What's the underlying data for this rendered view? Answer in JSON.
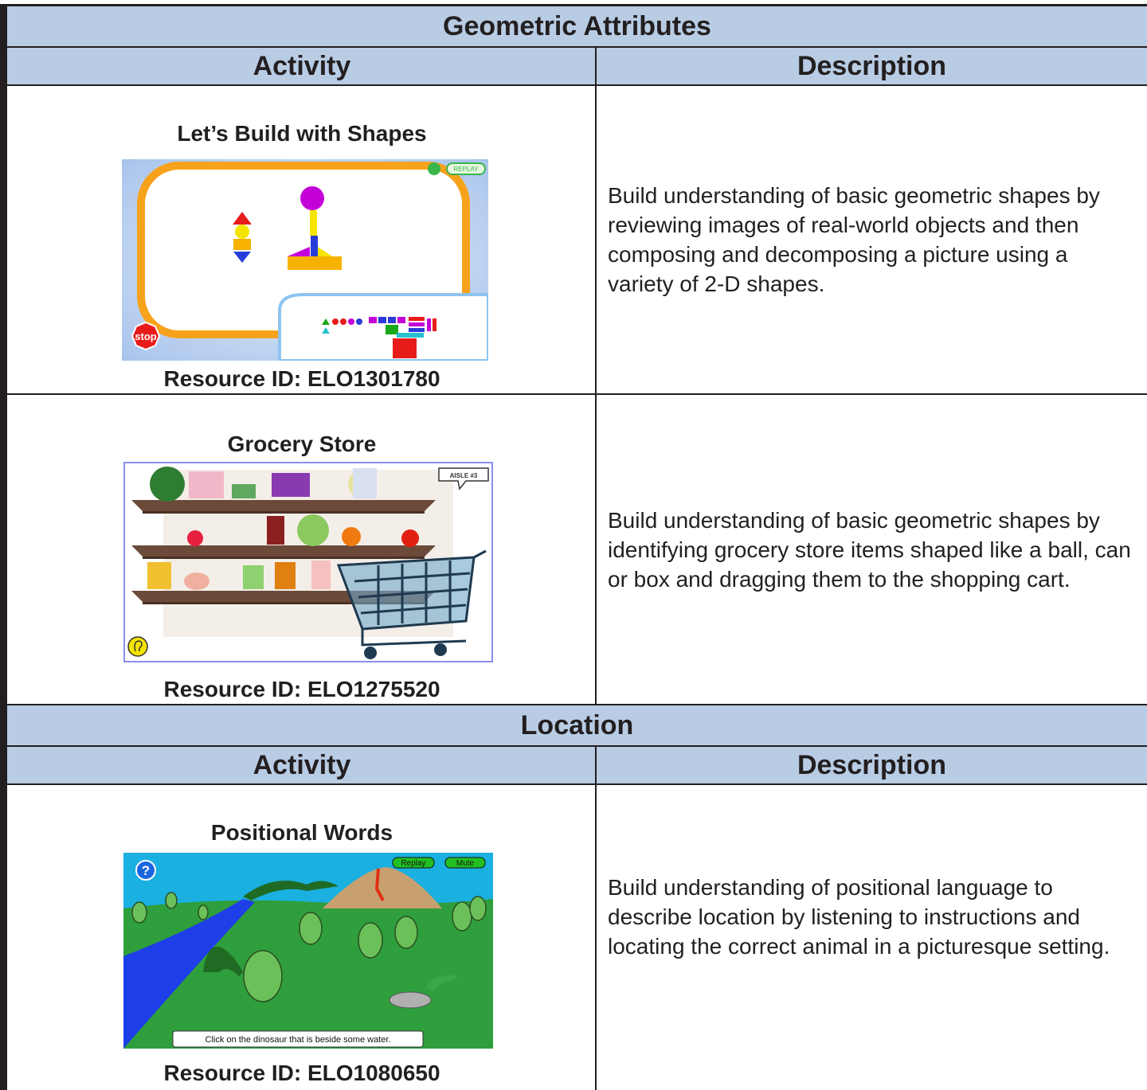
{
  "sections": [
    {
      "title": "Geometric Attributes",
      "column_headers": [
        "Activity",
        "Description"
      ],
      "rows": [
        {
          "activity": "Let’s Build with Shapes",
          "screenshot": {
            "replay": "REPLAY",
            "stop": "stop"
          },
          "resource_id": "Resource ID: ELO1301780",
          "description": "Build understanding of basic geometric shapes by reviewing images of real-world objects and then composing and decomposing a picture using a variety of 2-D shapes."
        },
        {
          "activity": "Grocery Store",
          "screenshot": {
            "sign": "AISLE #3"
          },
          "resource_id": "Resource ID: ELO1275520",
          "description": "Build understanding of basic geometric shapes by identifying grocery store items shaped like a ball, can or box and dragging them to the shopping cart."
        }
      ]
    },
    {
      "title": "Location",
      "column_headers": [
        "Activity",
        "Description"
      ],
      "rows": [
        {
          "activity": "Positional Words",
          "screenshot": {
            "help": "?",
            "replay": "Replay",
            "mute": "Mute",
            "caption": "Click on the dinosaur that is beside some water."
          },
          "resource_id": "Resource ID: ELO1080650",
          "description": "Build understanding of positional language to describe location by listening to instructions and locating the correct animal in a picturesque setting."
        }
      ]
    }
  ]
}
